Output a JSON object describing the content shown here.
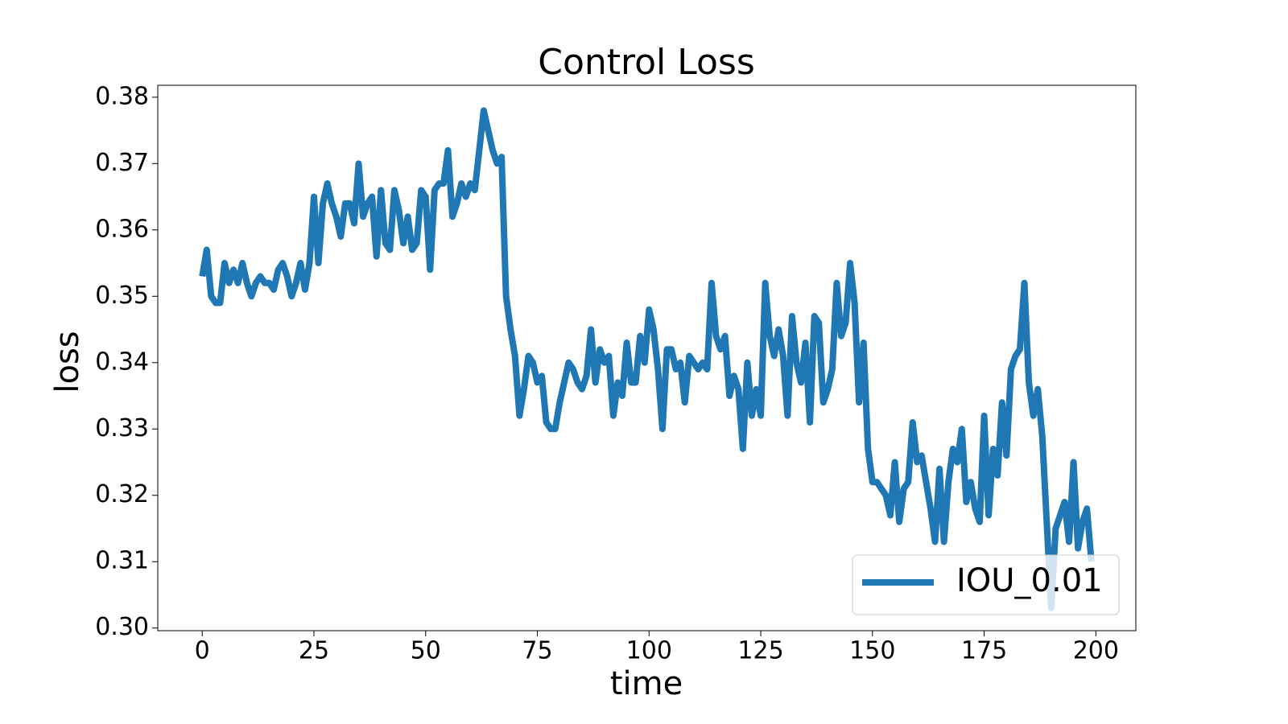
{
  "chart_data": {
    "type": "line",
    "title": "Control Loss",
    "x_label": "time",
    "y_label": "loss",
    "x": [
      0,
      1,
      2,
      3,
      4,
      5,
      6,
      7,
      8,
      9,
      10,
      11,
      12,
      13,
      14,
      15,
      16,
      17,
      18,
      19,
      20,
      21,
      22,
      23,
      24,
      25,
      26,
      27,
      28,
      29,
      30,
      31,
      32,
      33,
      34,
      35,
      36,
      37,
      38,
      39,
      40,
      41,
      42,
      43,
      44,
      45,
      46,
      47,
      48,
      49,
      50,
      51,
      52,
      53,
      54,
      55,
      56,
      57,
      58,
      59,
      60,
      61,
      62,
      63,
      64,
      65,
      66,
      67,
      68,
      69,
      70,
      71,
      72,
      73,
      74,
      75,
      76,
      77,
      78,
      79,
      80,
      81,
      82,
      83,
      84,
      85,
      86,
      87,
      88,
      89,
      90,
      91,
      92,
      93,
      94,
      95,
      96,
      97,
      98,
      99,
      100,
      101,
      102,
      103,
      104,
      105,
      106,
      107,
      108,
      109,
      110,
      111,
      112,
      113,
      114,
      115,
      116,
      117,
      118,
      119,
      120,
      121,
      122,
      123,
      124,
      125,
      126,
      127,
      128,
      129,
      130,
      131,
      132,
      133,
      134,
      135,
      136,
      137,
      138,
      139,
      140,
      141,
      142,
      143,
      144,
      145,
      146,
      147,
      148,
      149,
      150,
      151,
      152,
      153,
      154,
      155,
      156,
      157,
      158,
      159,
      160,
      161,
      162,
      163,
      164,
      165,
      166,
      167,
      168,
      169,
      170,
      171,
      172,
      173,
      174,
      175,
      176,
      177,
      178,
      179,
      180,
      181,
      182,
      183,
      184,
      185,
      186,
      187,
      188,
      189,
      190,
      191,
      192,
      193,
      194,
      195,
      196,
      197,
      198,
      199
    ],
    "series": [
      {
        "name": "IOU_0.01",
        "color": "#1f77b4",
        "values": [
          0.353,
          0.357,
          0.35,
          0.349,
          0.349,
          0.355,
          0.352,
          0.354,
          0.352,
          0.355,
          0.352,
          0.35,
          0.352,
          0.353,
          0.352,
          0.352,
          0.351,
          0.354,
          0.355,
          0.353,
          0.35,
          0.352,
          0.355,
          0.351,
          0.355,
          0.365,
          0.355,
          0.364,
          0.367,
          0.364,
          0.362,
          0.359,
          0.364,
          0.364,
          0.361,
          0.37,
          0.362,
          0.364,
          0.365,
          0.356,
          0.366,
          0.358,
          0.357,
          0.366,
          0.363,
          0.358,
          0.362,
          0.357,
          0.358,
          0.366,
          0.365,
          0.354,
          0.366,
          0.367,
          0.367,
          0.372,
          0.362,
          0.364,
          0.367,
          0.365,
          0.367,
          0.366,
          0.372,
          0.378,
          0.375,
          0.372,
          0.37,
          0.371,
          0.35,
          0.345,
          0.341,
          0.332,
          0.336,
          0.341,
          0.34,
          0.337,
          0.338,
          0.331,
          0.33,
          0.33,
          0.334,
          0.337,
          0.34,
          0.339,
          0.337,
          0.336,
          0.338,
          0.345,
          0.337,
          0.342,
          0.34,
          0.341,
          0.332,
          0.337,
          0.335,
          0.343,
          0.337,
          0.337,
          0.344,
          0.34,
          0.348,
          0.345,
          0.339,
          0.33,
          0.342,
          0.342,
          0.339,
          0.34,
          0.334,
          0.341,
          0.34,
          0.339,
          0.34,
          0.339,
          0.352,
          0.344,
          0.342,
          0.344,
          0.335,
          0.338,
          0.336,
          0.327,
          0.34,
          0.332,
          0.336,
          0.332,
          0.352,
          0.344,
          0.341,
          0.345,
          0.341,
          0.332,
          0.347,
          0.34,
          0.337,
          0.343,
          0.331,
          0.347,
          0.346,
          0.334,
          0.336,
          0.339,
          0.352,
          0.344,
          0.346,
          0.355,
          0.349,
          0.334,
          0.343,
          0.327,
          0.322,
          0.322,
          0.321,
          0.32,
          0.317,
          0.325,
          0.316,
          0.321,
          0.322,
          0.331,
          0.325,
          0.326,
          0.322,
          0.318,
          0.313,
          0.324,
          0.313,
          0.322,
          0.327,
          0.325,
          0.33,
          0.319,
          0.322,
          0.318,
          0.316,
          0.332,
          0.317,
          0.327,
          0.323,
          0.334,
          0.326,
          0.339,
          0.341,
          0.342,
          0.352,
          0.337,
          0.332,
          0.336,
          0.329,
          0.316,
          0.303,
          0.315,
          0.317,
          0.319,
          0.313,
          0.325,
          0.312,
          0.316,
          0.318,
          0.31
        ]
      }
    ],
    "xlim": [
      -9.95,
      208.95
    ],
    "ylim": [
      0.2996,
      0.3818
    ],
    "xticks": [
      0,
      25,
      50,
      75,
      100,
      125,
      150,
      175,
      200
    ],
    "yticks": [
      {
        "value": 0.3,
        "label": "0.30"
      },
      0.31,
      0.32,
      0.33,
      0.34,
      0.35,
      0.36,
      0.37,
      0.38
    ],
    "legend": "lower right"
  }
}
